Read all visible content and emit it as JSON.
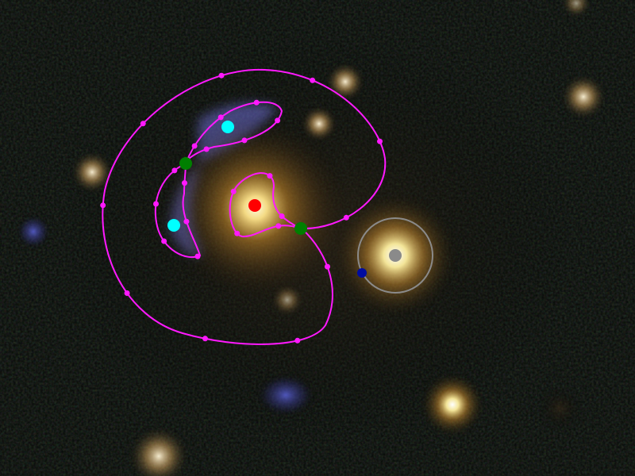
{
  "image": {
    "description_tags": [
      "gravitational-lens",
      "galaxy-cluster",
      "astronomical-image"
    ]
  },
  "colors": {
    "background": "#050705",
    "critical_curve": "#ff19ff",
    "lens_center": "#ff0000",
    "lensed_image": "#00ffff",
    "saddle_point": "#007f00",
    "perturber_ring": "#8a8a8a",
    "perturber_core": "#8a8a8a",
    "perturber_marker": "#000ca0",
    "arc_glow": "#6a6ad0",
    "galaxy_core": "#fff3c0",
    "galaxy_halo": "#d08a20"
  },
  "markers": {
    "lens_center": {
      "label": "lens-center"
    },
    "images": [
      {
        "label": "image-a"
      },
      {
        "label": "image-b"
      }
    ],
    "saddles": [
      {
        "label": "saddle-a"
      },
      {
        "label": "saddle-b"
      }
    ],
    "perturber": {
      "label": "perturber"
    }
  }
}
